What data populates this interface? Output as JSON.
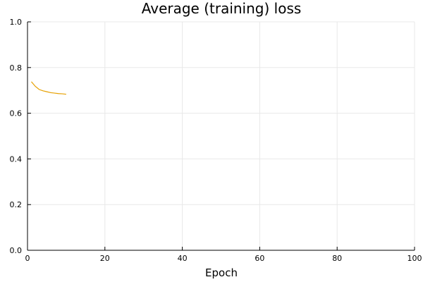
{
  "chart_data": {
    "type": "line",
    "title": "Average (training) loss",
    "xlabel": "Epoch",
    "ylabel": "",
    "xlim": [
      0,
      100
    ],
    "ylim": [
      0,
      1
    ],
    "xticks": [
      0,
      20,
      40,
      60,
      80,
      100
    ],
    "yticks": [
      0.0,
      0.2,
      0.4,
      0.6,
      0.8,
      1.0
    ],
    "xtick_labels": [
      "0",
      "20",
      "40",
      "60",
      "80",
      "100"
    ],
    "ytick_labels": [
      "0.0",
      "0.2",
      "0.4",
      "0.6",
      "0.8",
      "1.0"
    ],
    "grid": true,
    "legend": "none",
    "series": [
      {
        "color": "#e6a000",
        "x": [
          1,
          2,
          3,
          4,
          5,
          6,
          7,
          8,
          9,
          10
        ],
        "y": [
          0.738,
          0.718,
          0.704,
          0.698,
          0.694,
          0.69,
          0.688,
          0.686,
          0.685,
          0.683
        ]
      }
    ]
  }
}
